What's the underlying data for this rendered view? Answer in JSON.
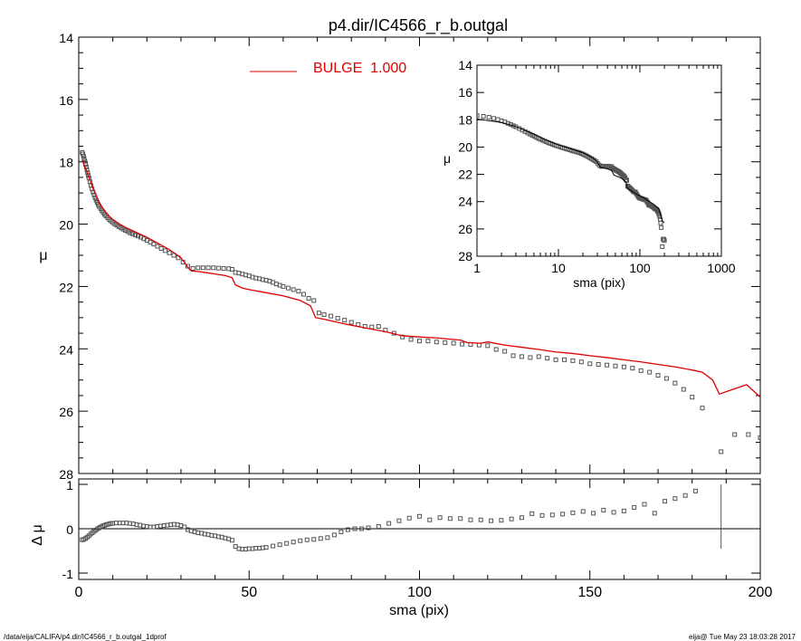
{
  "chart_data": {
    "title": "p4.dir/IC4566_r_b.outgal",
    "main": {
      "type": "scatter",
      "xlabel": "",
      "ylabel": "μ",
      "xlim": [
        0,
        200
      ],
      "ylim": [
        28,
        14
      ],
      "y_inverted": true,
      "y_ticks": [
        "14",
        "16",
        "18",
        "20",
        "22",
        "24",
        "26",
        "28"
      ],
      "legend": {
        "label": "BULGE  1.000",
        "color": "#dd0000",
        "placement": "top-center"
      },
      "observed": [
        [
          1.0,
          17.7
        ],
        [
          1.2,
          17.75
        ],
        [
          1.4,
          17.82
        ],
        [
          1.6,
          17.9
        ],
        [
          1.8,
          17.98
        ],
        [
          2.0,
          18.08
        ],
        [
          2.2,
          18.16
        ],
        [
          2.4,
          18.26
        ],
        [
          2.6,
          18.35
        ],
        [
          2.8,
          18.44
        ],
        [
          3.0,
          18.52
        ],
        [
          3.3,
          18.64
        ],
        [
          3.6,
          18.76
        ],
        [
          3.9,
          18.87
        ],
        [
          4.2,
          18.97
        ],
        [
          4.5,
          19.06
        ],
        [
          4.8,
          19.15
        ],
        [
          5.1,
          19.23
        ],
        [
          5.4,
          19.3
        ],
        [
          5.7,
          19.37
        ],
        [
          6.0,
          19.43
        ],
        [
          6.4,
          19.5
        ],
        [
          6.8,
          19.57
        ],
        [
          7.2,
          19.63
        ],
        [
          7.6,
          19.69
        ],
        [
          8.0,
          19.74
        ],
        [
          8.5,
          19.8
        ],
        [
          9.0,
          19.86
        ],
        [
          9.5,
          19.9
        ],
        [
          10.0,
          19.95
        ],
        [
          10.6,
          20.0
        ],
        [
          11.2,
          20.04
        ],
        [
          11.8,
          20.08
        ],
        [
          12.4,
          20.12
        ],
        [
          13.0,
          20.16
        ],
        [
          13.7,
          20.2
        ],
        [
          14.4,
          20.24
        ],
        [
          15.1,
          20.28
        ],
        [
          15.8,
          20.31
        ],
        [
          16.6,
          20.35
        ],
        [
          17.4,
          20.38
        ],
        [
          18.2,
          20.42
        ],
        [
          19.1,
          20.47
        ],
        [
          20.0,
          20.52
        ],
        [
          21.0,
          20.58
        ],
        [
          22.0,
          20.64
        ],
        [
          23.1,
          20.71
        ],
        [
          24.2,
          20.78
        ],
        [
          25.4,
          20.85
        ],
        [
          26.6,
          20.92
        ],
        [
          27.9,
          21.0
        ],
        [
          29.2,
          21.08
        ],
        [
          30.6,
          21.22
        ],
        [
          32.0,
          21.35
        ],
        [
          33.5,
          21.42
        ],
        [
          35.0,
          21.4
        ],
        [
          36.5,
          21.4
        ],
        [
          38.0,
          21.4
        ],
        [
          39.5,
          21.4
        ],
        [
          41.0,
          21.41
        ],
        [
          42.5,
          21.42
        ],
        [
          44.0,
          21.43
        ],
        [
          45.0,
          21.45
        ],
        [
          46.0,
          21.55
        ],
        [
          47.0,
          21.57
        ],
        [
          48.0,
          21.6
        ],
        [
          49.0,
          21.63
        ],
        [
          50.0,
          21.66
        ],
        [
          51.0,
          21.7
        ],
        [
          52.0,
          21.73
        ],
        [
          53.0,
          21.75
        ],
        [
          54.0,
          21.78
        ],
        [
          55.0,
          21.8
        ],
        [
          56.0,
          21.83
        ],
        [
          57.0,
          21.87
        ],
        [
          58.0,
          21.92
        ],
        [
          59.0,
          21.96
        ],
        [
          60.0,
          22.0
        ],
        [
          61.5,
          22.05
        ],
        [
          63.0,
          22.1
        ],
        [
          64.5,
          22.15
        ],
        [
          66.0,
          22.25
        ],
        [
          67.5,
          22.38
        ],
        [
          69.0,
          22.45
        ],
        [
          70.5,
          22.85
        ],
        [
          72.0,
          22.9
        ],
        [
          74.0,
          22.95
        ],
        [
          76.0,
          23.02
        ],
        [
          78.0,
          23.08
        ],
        [
          80.0,
          23.15
        ],
        [
          82.0,
          23.22
        ],
        [
          84.0,
          23.28
        ],
        [
          86.0,
          23.3
        ],
        [
          88.0,
          23.28
        ],
        [
          90.0,
          23.4
        ],
        [
          92.5,
          23.5
        ],
        [
          95.0,
          23.62
        ],
        [
          97.5,
          23.7
        ],
        [
          100.0,
          23.75
        ],
        [
          102.5,
          23.75
        ],
        [
          105.0,
          23.78
        ],
        [
          107.5,
          23.8
        ],
        [
          110.0,
          23.82
        ],
        [
          112.5,
          23.85
        ],
        [
          115.0,
          23.86
        ],
        [
          117.5,
          23.88
        ],
        [
          120.0,
          23.9
        ],
        [
          122.5,
          24.02
        ],
        [
          125.0,
          24.08
        ],
        [
          127.5,
          24.22
        ],
        [
          130.0,
          24.25
        ],
        [
          132.5,
          24.28
        ],
        [
          135.0,
          24.25
        ],
        [
          137.5,
          24.3
        ],
        [
          140.0,
          24.35
        ],
        [
          142.5,
          24.35
        ],
        [
          145.0,
          24.38
        ],
        [
          147.5,
          24.42
        ],
        [
          150.0,
          24.48
        ],
        [
          152.5,
          24.5
        ],
        [
          155.0,
          24.52
        ],
        [
          157.5,
          24.55
        ],
        [
          160.0,
          24.58
        ],
        [
          162.5,
          24.62
        ],
        [
          165.0,
          24.7
        ],
        [
          167.5,
          24.75
        ],
        [
          170.0,
          24.85
        ],
        [
          172.5,
          24.95
        ],
        [
          175.0,
          25.1
        ],
        [
          177.5,
          25.3
        ],
        [
          180.0,
          25.55
        ],
        [
          183.0,
          25.9
        ],
        [
          188.5,
          27.3
        ],
        [
          192.5,
          26.75
        ],
        [
          196.5,
          26.75
        ],
        [
          200.0,
          26.85
        ]
      ],
      "bulge_model": [
        [
          1.0,
          17.95
        ],
        [
          2.0,
          18.2
        ],
        [
          3.0,
          18.5
        ],
        [
          4.0,
          18.8
        ],
        [
          5.0,
          19.05
        ],
        [
          6.0,
          19.3
        ],
        [
          7.0,
          19.48
        ],
        [
          8.0,
          19.62
        ],
        [
          9.0,
          19.75
        ],
        [
          10.0,
          19.85
        ],
        [
          12.0,
          20.0
        ],
        [
          14.0,
          20.12
        ],
        [
          16.0,
          20.22
        ],
        [
          18.0,
          20.32
        ],
        [
          20.0,
          20.42
        ],
        [
          22.0,
          20.54
        ],
        [
          24.0,
          20.66
        ],
        [
          26.0,
          20.78
        ],
        [
          28.0,
          20.92
        ],
        [
          30.0,
          21.08
        ],
        [
          32.0,
          21.38
        ],
        [
          33.0,
          21.5
        ],
        [
          35.0,
          21.52
        ],
        [
          37.0,
          21.55
        ],
        [
          40.0,
          21.6
        ],
        [
          43.0,
          21.65
        ],
        [
          45.0,
          21.72
        ],
        [
          46.0,
          21.95
        ],
        [
          48.0,
          22.05
        ],
        [
          50.0,
          22.1
        ],
        [
          55.0,
          22.2
        ],
        [
          60.0,
          22.3
        ],
        [
          65.0,
          22.45
        ],
        [
          68.0,
          22.62
        ],
        [
          69.5,
          23.0
        ],
        [
          72.0,
          23.05
        ],
        [
          78.0,
          23.2
        ],
        [
          85.0,
          23.35
        ],
        [
          90.0,
          23.45
        ],
        [
          95.0,
          23.58
        ],
        [
          100.0,
          23.62
        ],
        [
          105.0,
          23.65
        ],
        [
          110.0,
          23.7
        ],
        [
          112.0,
          23.72
        ],
        [
          114.0,
          23.8
        ],
        [
          118.0,
          23.82
        ],
        [
          120.0,
          23.78
        ],
        [
          125.0,
          23.88
        ],
        [
          130.0,
          23.95
        ],
        [
          135.0,
          24.02
        ],
        [
          140.0,
          24.1
        ],
        [
          145.0,
          24.15
        ],
        [
          150.0,
          24.22
        ],
        [
          155.0,
          24.28
        ],
        [
          160.0,
          24.35
        ],
        [
          165.0,
          24.42
        ],
        [
          170.0,
          24.5
        ],
        [
          175.0,
          24.58
        ],
        [
          180.0,
          24.68
        ],
        [
          183.0,
          24.75
        ],
        [
          186.0,
          25.0
        ],
        [
          188.0,
          25.45
        ],
        [
          192.0,
          25.3
        ],
        [
          196.0,
          25.15
        ],
        [
          200.0,
          25.55
        ]
      ]
    },
    "inset": {
      "type": "scatter",
      "xscale": "log",
      "xlabel": "sma (pix)",
      "ylabel": "μ",
      "xlim": [
        1,
        1000
      ],
      "ylim": [
        28,
        14
      ],
      "y_inverted": true,
      "x_ticks": [
        "1",
        "10",
        "100",
        "1000"
      ],
      "y_ticks": [
        "14",
        "16",
        "18",
        "20",
        "22",
        "24",
        "26",
        "28"
      ],
      "bulge_model": [
        [
          1.0,
          17.95
        ],
        [
          2.0,
          18.2
        ],
        [
          3.0,
          18.5
        ],
        [
          5.0,
          19.05
        ],
        [
          7.0,
          19.48
        ],
        [
          10.0,
          19.85
        ],
        [
          14.0,
          20.12
        ],
        [
          20.0,
          20.42
        ],
        [
          26.0,
          20.78
        ],
        [
          30.0,
          21.08
        ],
        [
          33.0,
          21.5
        ],
        [
          40.0,
          21.6
        ],
        [
          45.0,
          21.72
        ],
        [
          48.0,
          22.05
        ],
        [
          60.0,
          22.3
        ],
        [
          68.0,
          22.62
        ],
        [
          70.0,
          23.0
        ],
        [
          90.0,
          23.45
        ],
        [
          110.0,
          23.7
        ],
        [
          140.0,
          24.1
        ],
        [
          170.0,
          24.5
        ],
        [
          190.0,
          25.45
        ],
        [
          200.0,
          25.55
        ]
      ]
    },
    "residual": {
      "type": "scatter",
      "xlabel": "sma (pix)",
      "ylabel": "Δ μ",
      "xlim": [
        0,
        200
      ],
      "ylim": [
        -1.0,
        1.0
      ],
      "x_ticks": [
        "0",
        "50",
        "100",
        "150",
        "200"
      ],
      "y_ticks": [
        "-1",
        "0",
        "1"
      ],
      "points": [
        [
          1.0,
          -0.25
        ],
        [
          1.5,
          -0.24
        ],
        [
          2.0,
          -0.22
        ],
        [
          2.5,
          -0.19
        ],
        [
          3.0,
          -0.16
        ],
        [
          3.5,
          -0.12
        ],
        [
          4.0,
          -0.09
        ],
        [
          4.5,
          -0.06
        ],
        [
          5.0,
          -0.03
        ],
        [
          5.5,
          0.0
        ],
        [
          6.0,
          0.02
        ],
        [
          6.5,
          0.04
        ],
        [
          7.0,
          0.06
        ],
        [
          7.5,
          0.07
        ],
        [
          8.0,
          0.09
        ],
        [
          8.5,
          0.1
        ],
        [
          9.0,
          0.11
        ],
        [
          9.5,
          0.12
        ],
        [
          10.0,
          0.12
        ],
        [
          11.0,
          0.13
        ],
        [
          12.0,
          0.13
        ],
        [
          13.0,
          0.13
        ],
        [
          14.0,
          0.13
        ],
        [
          15.0,
          0.12
        ],
        [
          16.0,
          0.11
        ],
        [
          17.0,
          0.09
        ],
        [
          18.0,
          0.08
        ],
        [
          19.0,
          0.06
        ],
        [
          20.0,
          0.05
        ],
        [
          21.0,
          0.04
        ],
        [
          22.0,
          0.04
        ],
        [
          23.0,
          0.05
        ],
        [
          24.0,
          0.06
        ],
        [
          25.0,
          0.07
        ],
        [
          26.0,
          0.08
        ],
        [
          27.0,
          0.09
        ],
        [
          28.0,
          0.1
        ],
        [
          29.0,
          0.09
        ],
        [
          30.0,
          0.07
        ],
        [
          31.0,
          0.04
        ],
        [
          32.0,
          -0.02
        ],
        [
          33.0,
          -0.05
        ],
        [
          34.0,
          -0.07
        ],
        [
          35.0,
          -0.09
        ],
        [
          36.0,
          -0.1
        ],
        [
          37.0,
          -0.12
        ],
        [
          38.0,
          -0.13
        ],
        [
          39.0,
          -0.15
        ],
        [
          40.0,
          -0.16
        ],
        [
          41.0,
          -0.18
        ],
        [
          42.0,
          -0.19
        ],
        [
          43.0,
          -0.21
        ],
        [
          44.0,
          -0.23
        ],
        [
          45.0,
          -0.26
        ],
        [
          46.0,
          -0.4
        ],
        [
          47.0,
          -0.45
        ],
        [
          48.0,
          -0.46
        ],
        [
          49.0,
          -0.46
        ],
        [
          50.0,
          -0.45
        ],
        [
          51.0,
          -0.45
        ],
        [
          52.0,
          -0.44
        ],
        [
          53.0,
          -0.44
        ],
        [
          54.0,
          -0.43
        ],
        [
          55.0,
          -0.42
        ],
        [
          57.0,
          -0.39
        ],
        [
          59.0,
          -0.36
        ],
        [
          61.0,
          -0.33
        ],
        [
          63.0,
          -0.3
        ],
        [
          65.0,
          -0.27
        ],
        [
          67.0,
          -0.25
        ],
        [
          69.0,
          -0.24
        ],
        [
          71.0,
          -0.22
        ],
        [
          73.0,
          -0.2
        ],
        [
          75.0,
          -0.14
        ],
        [
          77.0,
          -0.07
        ],
        [
          79.0,
          -0.02
        ],
        [
          81.0,
          0.0
        ],
        [
          83.0,
          0.0
        ],
        [
          85.0,
          0.02
        ],
        [
          88.0,
          0.05
        ],
        [
          91.0,
          0.12
        ],
        [
          94.0,
          0.18
        ],
        [
          97.0,
          0.24
        ],
        [
          100.0,
          0.28
        ],
        [
          103.0,
          0.2
        ],
        [
          106.0,
          0.25
        ],
        [
          109.0,
          0.23
        ],
        [
          112.0,
          0.23
        ],
        [
          115.0,
          0.2
        ],
        [
          118.0,
          0.2
        ],
        [
          121.0,
          0.18
        ],
        [
          124.0,
          0.19
        ],
        [
          127.0,
          0.22
        ],
        [
          130.0,
          0.25
        ],
        [
          133.0,
          0.34
        ],
        [
          136.0,
          0.3
        ],
        [
          139.0,
          0.31
        ],
        [
          142.0,
          0.33
        ],
        [
          145.0,
          0.36
        ],
        [
          148.0,
          0.39
        ],
        [
          151.0,
          0.35
        ],
        [
          154.0,
          0.42
        ],
        [
          157.0,
          0.37
        ],
        [
          160.0,
          0.4
        ],
        [
          163.0,
          0.48
        ],
        [
          166.0,
          0.55
        ],
        [
          169.0,
          0.35
        ],
        [
          172.0,
          0.62
        ],
        [
          175.0,
          0.68
        ],
        [
          178.0,
          0.75
        ],
        [
          181.0,
          0.85
        ]
      ],
      "error_bar": {
        "x": 188.5,
        "low": -0.45,
        "high": 1.0
      }
    }
  },
  "footer": {
    "left": "/data/eija/CALIFA/p4.dir/IC4566_r_b.outgal_1dprof",
    "right": "eija@  Tue May 23 18:03:28 2017"
  },
  "colors": {
    "model": "#dd0000",
    "points": "#555555",
    "axes": "#000000"
  }
}
